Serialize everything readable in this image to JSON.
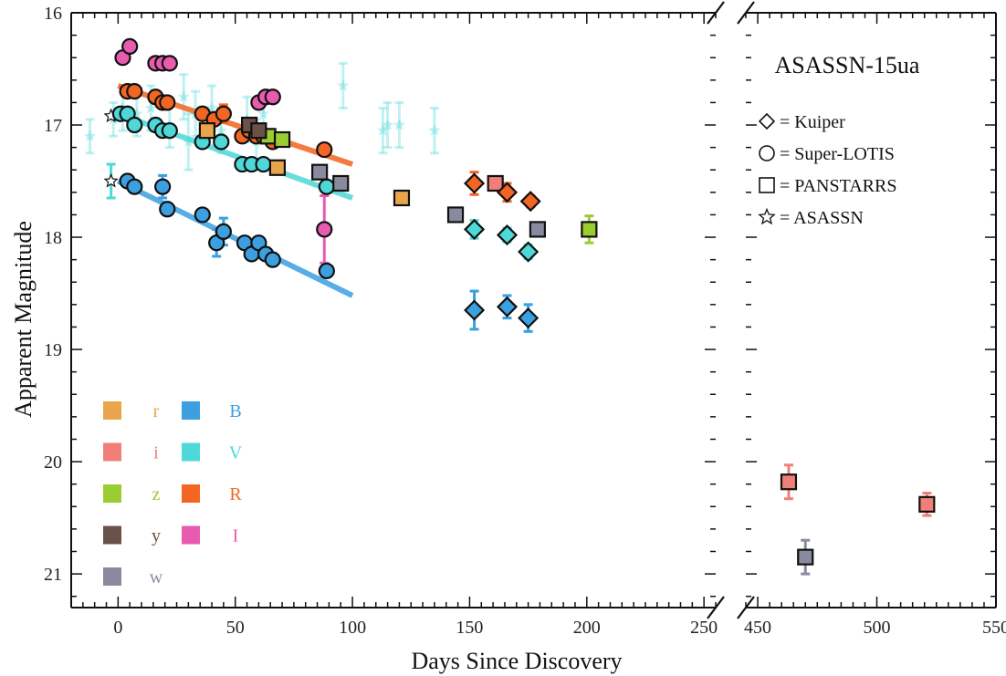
{
  "chart_data": {
    "type": "scatter",
    "title": "ASASSN-15ua",
    "xlabel": "Days Since Discovery",
    "ylabel": "Apparent Magnitude",
    "y_inverted": true,
    "ylim": [
      21.3,
      16
    ],
    "x_panels": [
      {
        "xlim": [
          -20,
          255
        ],
        "ticks": [
          0,
          50,
          100,
          150,
          200,
          250
        ],
        "tick_labels": [
          "0",
          "50",
          "100",
          "150",
          "200",
          "250"
        ]
      },
      {
        "xlim": [
          445,
          550
        ],
        "ticks": [
          450,
          500,
          550
        ],
        "tick_labels": [
          "450",
          "500",
          "550"
        ]
      }
    ],
    "y_ticks": [
      16,
      17,
      18,
      19,
      20,
      21
    ],
    "y_tick_labels": [
      "16",
      "17",
      "18",
      "19",
      "20",
      "21"
    ],
    "instrument_key": [
      {
        "marker": "diamond",
        "label": "= Kuiper"
      },
      {
        "marker": "circle",
        "label": "= Super-LOTIS"
      },
      {
        "marker": "square",
        "label": "= PANSTARRS"
      },
      {
        "marker": "star",
        "label": "= ASASSN"
      }
    ],
    "bands": [
      {
        "name": "r",
        "color": "#E8A54B"
      },
      {
        "name": "i",
        "color": "#F07F7A"
      },
      {
        "name": "z",
        "color": "#9ACD32"
      },
      {
        "name": "y",
        "color": "#6A5248"
      },
      {
        "name": "w",
        "color": "#8A8A9E"
      },
      {
        "name": "B",
        "color": "#3B9FE0"
      },
      {
        "name": "V",
        "color": "#4ED8D8"
      },
      {
        "name": "R",
        "color": "#F26522"
      },
      {
        "name": "I",
        "color": "#E85BB0"
      }
    ],
    "fit_lines": [
      {
        "band": "R",
        "x": [
          0,
          100
        ],
        "y": [
          16.65,
          17.35
        ]
      },
      {
        "band": "V",
        "x": [
          0,
          100
        ],
        "y": [
          16.9,
          17.65
        ]
      },
      {
        "band": "B",
        "x": [
          0,
          100
        ],
        "y": [
          17.5,
          18.52
        ]
      }
    ],
    "series": [
      {
        "band": "V",
        "instrument": "ASASSN",
        "faint": true,
        "points": [
          {
            "x": -12,
            "y": 17.1,
            "err": 0.15
          },
          {
            "x": -2,
            "y": 16.95,
            "err": 0.15
          },
          {
            "x": 2,
            "y": 16.85,
            "err": 0.2
          },
          {
            "x": 8,
            "y": 16.9,
            "err": 0.2
          },
          {
            "x": 14,
            "y": 16.85,
            "err": 0.2
          },
          {
            "x": 22,
            "y": 17.0,
            "err": 0.2
          },
          {
            "x": 28,
            "y": 16.75,
            "err": 0.2
          },
          {
            "x": 30,
            "y": 17.15,
            "err": 0.25
          },
          {
            "x": 33,
            "y": 16.9,
            "err": 0.2
          },
          {
            "x": 40,
            "y": 16.85,
            "err": 0.2
          },
          {
            "x": 44,
            "y": 17.05,
            "err": 0.2
          },
          {
            "x": 55,
            "y": 16.95,
            "err": 0.2
          },
          {
            "x": 59,
            "y": 17.15,
            "err": 0.2
          },
          {
            "x": 62,
            "y": 16.9,
            "err": 0.2
          },
          {
            "x": 96,
            "y": 16.65,
            "err": 0.2
          },
          {
            "x": 113,
            "y": 17.05,
            "err": 0.2
          },
          {
            "x": 115,
            "y": 17.0,
            "err": 0.2
          },
          {
            "x": 120,
            "y": 17.0,
            "err": 0.2
          },
          {
            "x": 135,
            "y": 17.05,
            "err": 0.2
          }
        ]
      },
      {
        "band": "V",
        "instrument": "ASASSN",
        "faint": false,
        "points": [
          {
            "x": -3,
            "y": 16.92,
            "err": 0.0
          },
          {
            "x": -3,
            "y": 17.5,
            "err": 0.15
          }
        ]
      },
      {
        "band": "R",
        "instrument": "Super-LOTIS",
        "points": [
          {
            "x": 4,
            "y": 16.7,
            "err": 0.05
          },
          {
            "x": 7,
            "y": 16.7,
            "err": 0.05
          },
          {
            "x": 16,
            "y": 16.75,
            "err": 0.05
          },
          {
            "x": 19,
            "y": 16.8,
            "err": 0.05
          },
          {
            "x": 21,
            "y": 16.8,
            "err": 0.05
          },
          {
            "x": 36,
            "y": 16.9,
            "err": 0.05
          },
          {
            "x": 41,
            "y": 16.95,
            "err": 0.05
          },
          {
            "x": 45,
            "y": 16.9,
            "err": 0.08
          },
          {
            "x": 53,
            "y": 17.1,
            "err": 0.05
          },
          {
            "x": 56,
            "y": 17.05,
            "err": 0.05
          },
          {
            "x": 59,
            "y": 17.1,
            "err": 0.05
          },
          {
            "x": 62,
            "y": 17.1,
            "err": 0.05
          },
          {
            "x": 66,
            "y": 17.15,
            "err": 0.05
          },
          {
            "x": 88,
            "y": 17.22,
            "err": 0.05
          }
        ]
      },
      {
        "band": "V",
        "instrument": "Super-LOTIS",
        "points": [
          {
            "x": 1,
            "y": 16.9,
            "err": 0.05
          },
          {
            "x": 4,
            "y": 16.9,
            "err": 0.05
          },
          {
            "x": 7,
            "y": 17.0,
            "err": 0.05
          },
          {
            "x": 16,
            "y": 17.0,
            "err": 0.05
          },
          {
            "x": 19,
            "y": 17.05,
            "err": 0.05
          },
          {
            "x": 22,
            "y": 17.05,
            "err": 0.05
          },
          {
            "x": 36,
            "y": 17.15,
            "err": 0.05
          },
          {
            "x": 44,
            "y": 17.15,
            "err": 0.05
          },
          {
            "x": 53,
            "y": 17.35,
            "err": 0.05
          },
          {
            "x": 57,
            "y": 17.35,
            "err": 0.05
          },
          {
            "x": 62,
            "y": 17.35,
            "err": 0.05
          },
          {
            "x": 89,
            "y": 17.55,
            "err": 0.05
          }
        ]
      },
      {
        "band": "B",
        "instrument": "Super-LOTIS",
        "points": [
          {
            "x": 4,
            "y": 17.5,
            "err": 0.05
          },
          {
            "x": 7,
            "y": 17.55,
            "err": 0.05
          },
          {
            "x": 19,
            "y": 17.55,
            "err": 0.1
          },
          {
            "x": 21,
            "y": 17.75,
            "err": 0.05
          },
          {
            "x": 36,
            "y": 17.8,
            "err": 0.05
          },
          {
            "x": 42,
            "y": 18.05,
            "err": 0.12
          },
          {
            "x": 45,
            "y": 17.95,
            "err": 0.12
          },
          {
            "x": 54,
            "y": 18.05,
            "err": 0.05
          },
          {
            "x": 57,
            "y": 18.15,
            "err": 0.05
          },
          {
            "x": 60,
            "y": 18.05,
            "err": 0.05
          },
          {
            "x": 63,
            "y": 18.15,
            "err": 0.05
          },
          {
            "x": 66,
            "y": 18.2,
            "err": 0.05
          },
          {
            "x": 89,
            "y": 18.3,
            "err": 0.05
          }
        ]
      },
      {
        "band": "I",
        "instrument": "Super-LOTIS",
        "points": [
          {
            "x": 2,
            "y": 16.4,
            "err": 0.03
          },
          {
            "x": 5,
            "y": 16.3,
            "err": 0.03
          },
          {
            "x": 16,
            "y": 16.45,
            "err": 0.03
          },
          {
            "x": 19,
            "y": 16.45,
            "err": 0.03
          },
          {
            "x": 22,
            "y": 16.45,
            "err": 0.03
          },
          {
            "x": 60,
            "y": 16.8,
            "err": 0.03
          },
          {
            "x": 63,
            "y": 16.75,
            "err": 0.03
          },
          {
            "x": 66,
            "y": 16.75,
            "err": 0.03
          },
          {
            "x": 88,
            "y": 17.93,
            "err": 0.3
          }
        ]
      },
      {
        "band": "r",
        "instrument": "PANSTARRS",
        "points": [
          {
            "x": 38,
            "y": 17.05,
            "err": 0.05
          },
          {
            "x": 68,
            "y": 17.38,
            "err": 0.03
          },
          {
            "x": 121,
            "y": 17.65,
            "err": 0.03
          }
        ]
      },
      {
        "band": "i",
        "instrument": "PANSTARRS",
        "points": [
          {
            "x": 161,
            "y": 17.52,
            "err": 0.03
          },
          {
            "x": 463,
            "y": 20.18,
            "err": 0.15
          },
          {
            "x": 521,
            "y": 20.38,
            "err": 0.1
          }
        ]
      },
      {
        "band": "z",
        "instrument": "PANSTARRS",
        "points": [
          {
            "x": 64,
            "y": 17.1,
            "err": 0.03
          },
          {
            "x": 70,
            "y": 17.13,
            "err": 0.03
          },
          {
            "x": 201,
            "y": 17.93,
            "err": 0.12
          }
        ]
      },
      {
        "band": "y",
        "instrument": "PANSTARRS",
        "points": [
          {
            "x": 56,
            "y": 17.0,
            "err": 0.03
          },
          {
            "x": 60,
            "y": 17.05,
            "err": 0.03
          }
        ]
      },
      {
        "band": "w",
        "instrument": "PANSTARRS",
        "points": [
          {
            "x": 86,
            "y": 17.42,
            "err": 0.03
          },
          {
            "x": 95,
            "y": 17.52,
            "err": 0.03
          },
          {
            "x": 144,
            "y": 17.8,
            "err": 0.03
          },
          {
            "x": 179,
            "y": 17.93,
            "err": 0.03
          },
          {
            "x": 470,
            "y": 20.85,
            "err": 0.15
          }
        ]
      },
      {
        "band": "R",
        "instrument": "Kuiper",
        "points": [
          {
            "x": 152,
            "y": 17.52,
            "err": 0.1
          },
          {
            "x": 166,
            "y": 17.6,
            "err": 0.08
          },
          {
            "x": 176,
            "y": 17.68,
            "err": 0.05
          }
        ]
      },
      {
        "band": "V",
        "instrument": "Kuiper",
        "points": [
          {
            "x": 152,
            "y": 17.93,
            "err": 0.08
          },
          {
            "x": 166,
            "y": 17.98,
            "err": 0.06
          },
          {
            "x": 175,
            "y": 18.13,
            "err": 0.06
          }
        ]
      },
      {
        "band": "B",
        "instrument": "Kuiper",
        "points": [
          {
            "x": 152,
            "y": 18.65,
            "err": 0.17
          },
          {
            "x": 166,
            "y": 18.62,
            "err": 0.1
          },
          {
            "x": 175,
            "y": 18.72,
            "err": 0.12
          }
        ]
      }
    ]
  }
}
